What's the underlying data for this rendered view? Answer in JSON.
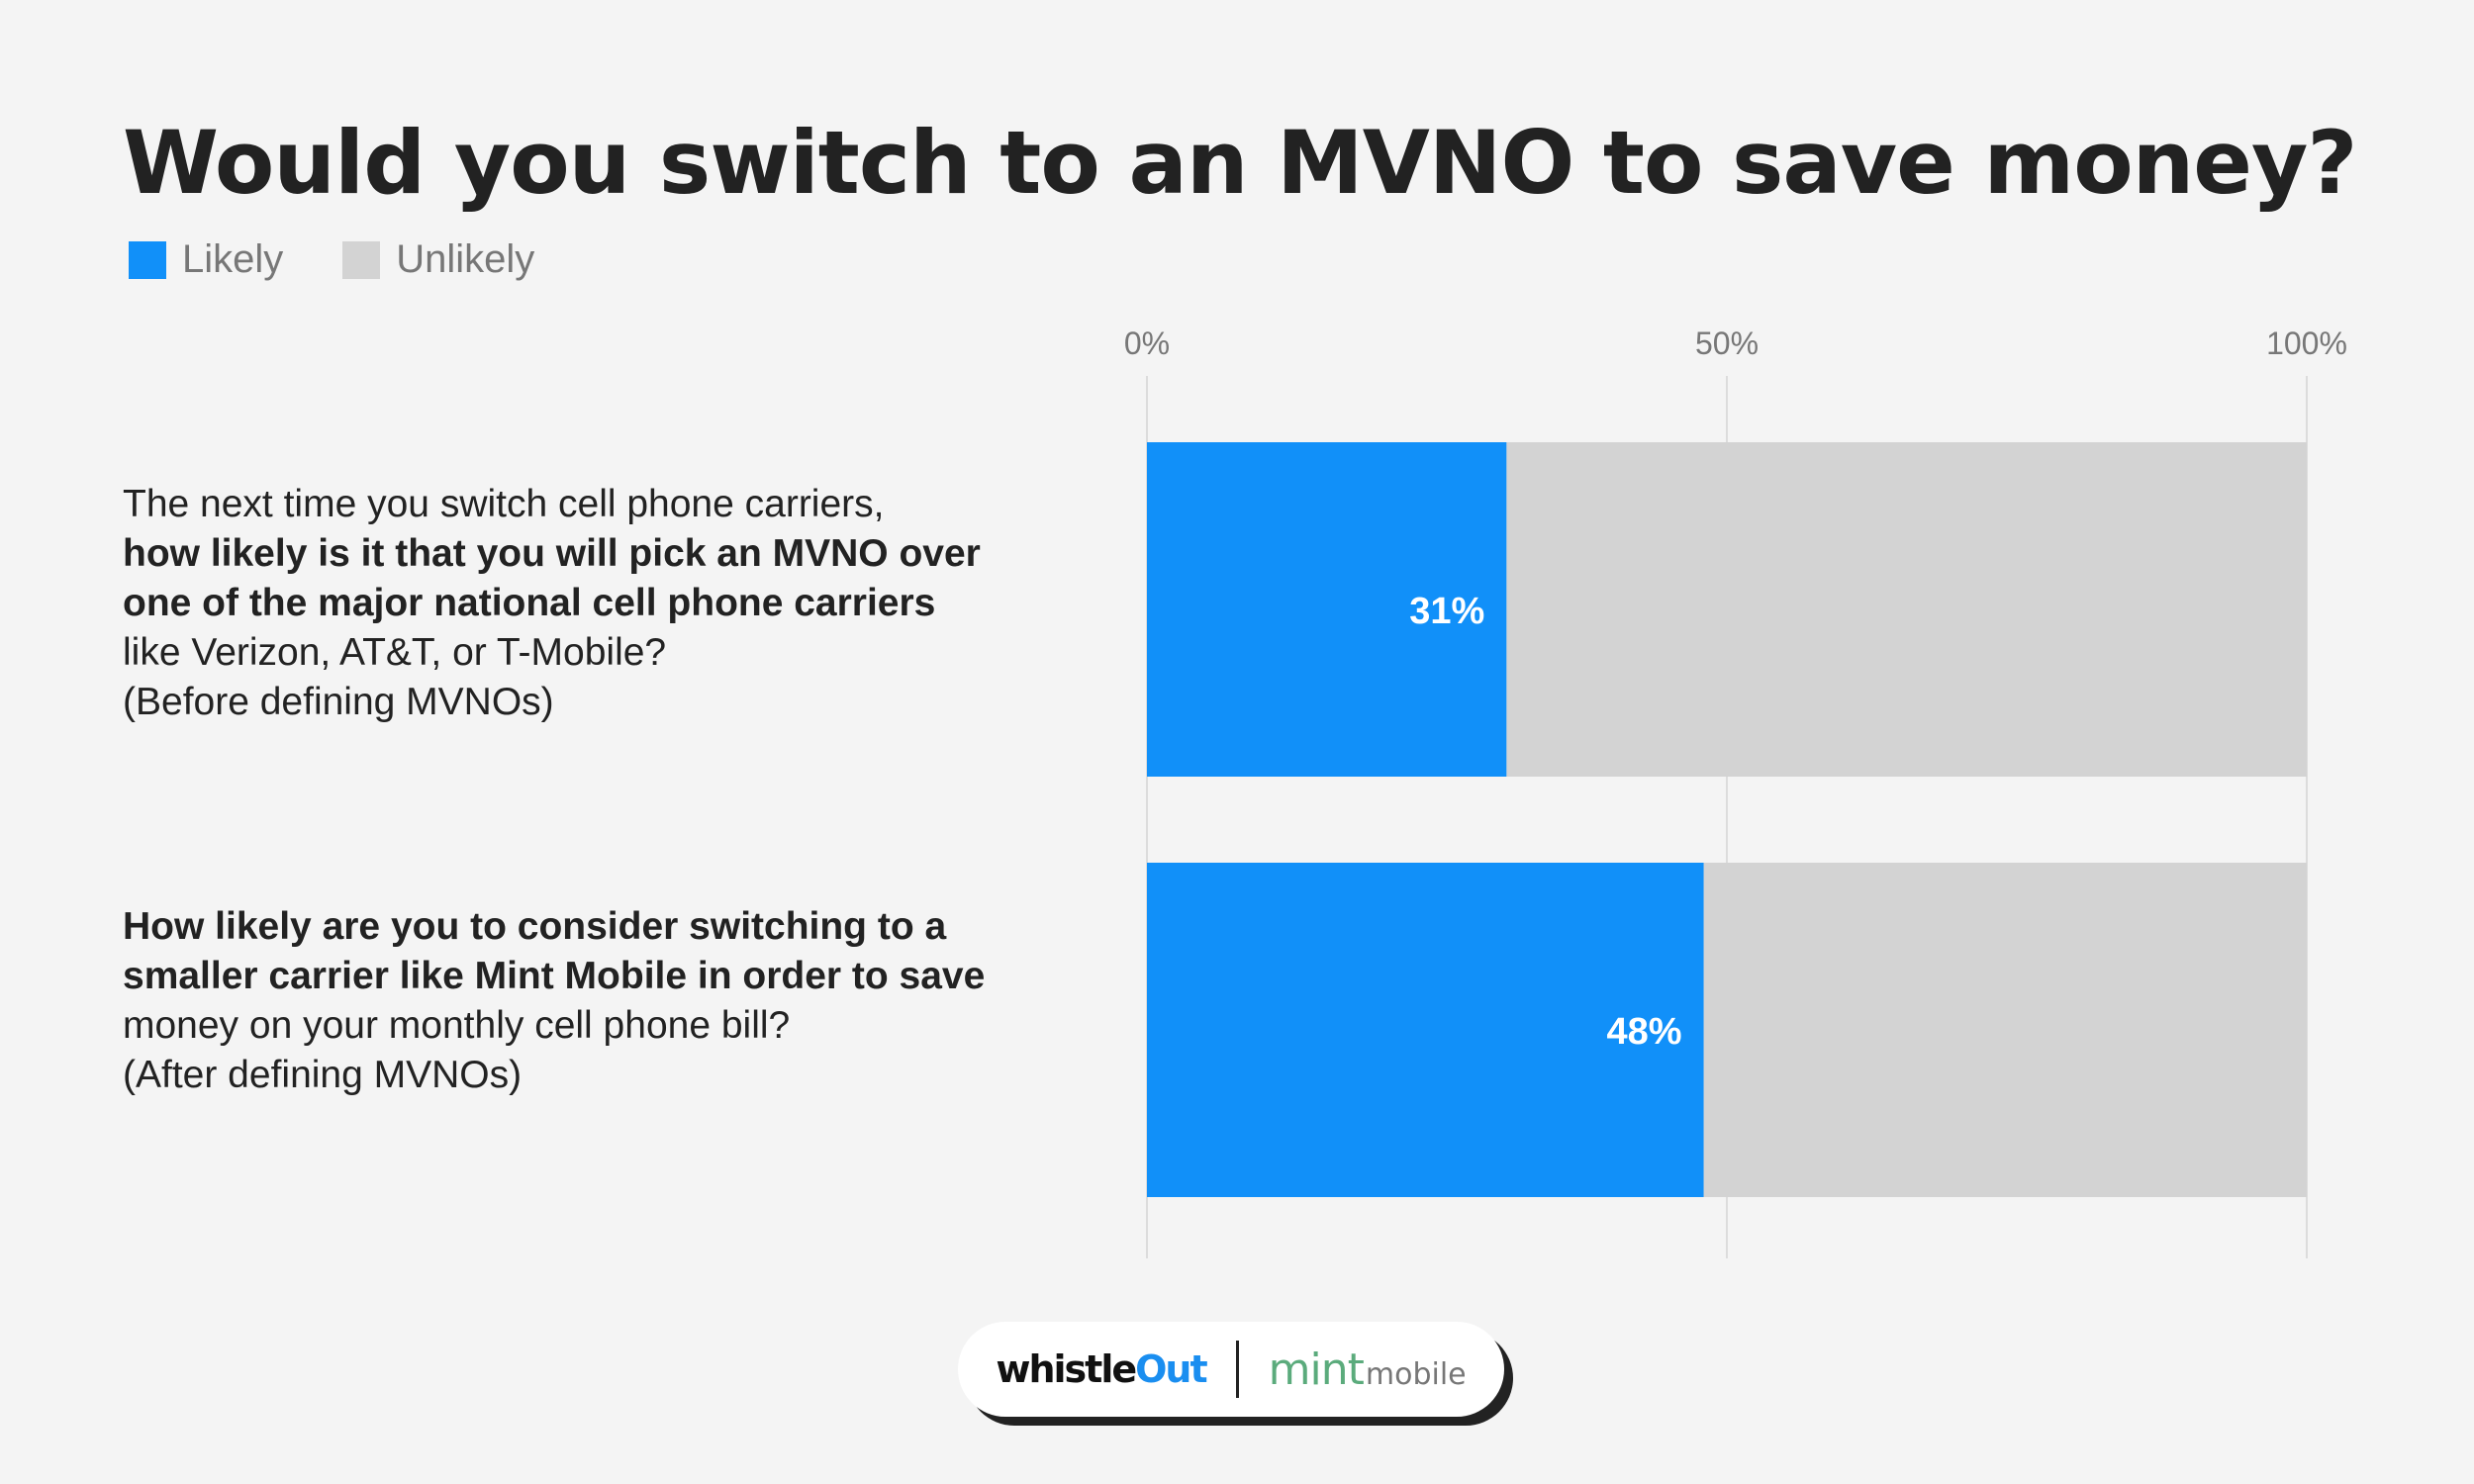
{
  "colors": {
    "likely": "#1190f9",
    "unlikely": "#d3d3d3",
    "grid": "#dcdcdc",
    "tick": "#777777",
    "value_label": "#ffffff"
  },
  "chart_data": {
    "type": "bar",
    "orientation": "horizontal",
    "stacked": true,
    "title": "Would you switch to an MVNO to save money?",
    "legend": [
      {
        "label": "Likely",
        "color": "#1190f9"
      },
      {
        "label": "Unlikely",
        "color": "#d3d3d3"
      }
    ],
    "legend_position": "top-left",
    "x_ticks": [
      "0%",
      "50%",
      "100%"
    ],
    "xlim": [
      0,
      100
    ],
    "grid": true,
    "categories": [
      {
        "lines": [
          {
            "text": "The next time you switch cell phone carriers,",
            "bold": false
          },
          {
            "text": "how likely is it that you will pick an MVNO over",
            "bold": true
          },
          {
            "text": "one of the major national cell phone carriers",
            "bold": true
          },
          {
            "text": "like Verizon, AT&T, or T-Mobile?",
            "bold": false
          },
          {
            "text": "(Before defining MVNOs)",
            "bold": false
          }
        ]
      },
      {
        "lines": [
          {
            "text": "How likely are you to consider switching to a",
            "bold": true
          },
          {
            "text": "smaller carrier like Mint Mobile in order to save",
            "bold": true
          },
          {
            "text": "money on your monthly cell phone bill?",
            "bold": false
          },
          {
            "text": "(After defining MVNOs)",
            "bold": false
          }
        ]
      }
    ],
    "series": [
      {
        "name": "Likely",
        "values": [
          31,
          48
        ],
        "labels": [
          "31%",
          "48%"
        ]
      },
      {
        "name": "Unlikely",
        "values": [
          69,
          52
        ]
      }
    ]
  },
  "footer": {
    "logo_whistle_main": "whistle",
    "logo_whistle_out": "Out",
    "logo_mint_main": "mint",
    "logo_mint_sub": "mobile"
  }
}
